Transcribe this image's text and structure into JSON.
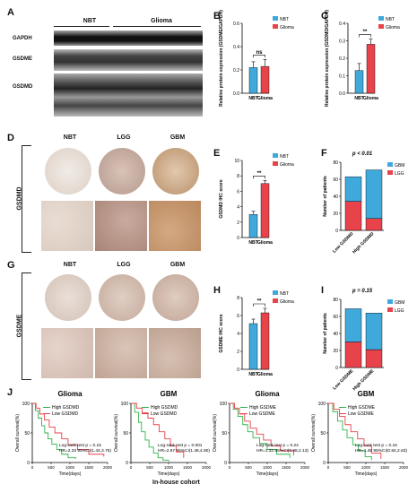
{
  "panels": {
    "A": "A",
    "B": "B",
    "C": "C",
    "D": "D",
    "E": "E",
    "F": "F",
    "G": "G",
    "H": "H",
    "I": "I",
    "J": "J"
  },
  "western": {
    "groups": [
      "NBT",
      "Glioma"
    ],
    "rows": [
      "GAPDH",
      "GSDME",
      "GSDMD"
    ]
  },
  "ihc_d": {
    "cols": [
      "NBT",
      "LGG",
      "GBM"
    ],
    "side": "GSDMD"
  },
  "ihc_g": {
    "cols": [
      "NBT",
      "LGG",
      "GBM"
    ],
    "side": "GSDME"
  },
  "footer": "In-house cohort",
  "colors": {
    "nbt": "#3fa9dc",
    "glioma": "#e8424a",
    "gbm": "#3fa9dc",
    "lgg": "#e8424a",
    "high": "#2fb34a",
    "low": "#e8424a"
  },
  "chart_data": [
    {
      "id": "B",
      "type": "bar",
      "ylabel": "Relative protein expression (GSDME/GAPDH)",
      "categories": [
        "NBT",
        "Glioma"
      ],
      "values": [
        0.22,
        0.23
      ],
      "err": [
        0.05,
        0.06
      ],
      "ylim": [
        0,
        0.6
      ],
      "yticks": [
        "0.0",
        "0.2",
        "0.4",
        "0.6"
      ],
      "legend": [
        "NBT",
        "Glioma"
      ],
      "sig": "ns"
    },
    {
      "id": "C",
      "type": "bar",
      "ylabel": "Relative protein expression (GSDMD/GAPDH)",
      "categories": [
        "NBT",
        "Glioma"
      ],
      "values": [
        0.13,
        0.28
      ],
      "err": [
        0.04,
        0.03
      ],
      "ylim": [
        0,
        0.4
      ],
      "yticks": [
        "0.0",
        "0.1",
        "0.2",
        "0.3",
        "0.4"
      ],
      "legend": [
        "NBT",
        "Glioma"
      ],
      "sig": "**"
    },
    {
      "id": "E",
      "type": "bar",
      "ylabel": "GSDMD IHC score",
      "categories": [
        "NBT",
        "Glioma"
      ],
      "values": [
        3.0,
        7.0
      ],
      "err": [
        0.4,
        0.4
      ],
      "ylim": [
        0,
        10
      ],
      "yticks": [
        "0",
        "2",
        "4",
        "6",
        "8",
        "10"
      ],
      "legend": [
        "NBT",
        "Glioma"
      ],
      "sig": "**"
    },
    {
      "id": "F",
      "type": "stacked-bar",
      "ylabel": "Number of patients",
      "title": "p < 0.01",
      "categories": [
        "Low GSDMD",
        "High GSDMD"
      ],
      "series": [
        {
          "name": "LGG",
          "values": [
            34,
            14
          ]
        },
        {
          "name": "GBM",
          "values": [
            29,
            57
          ]
        }
      ],
      "ylim": [
        0,
        80
      ],
      "yticks": [
        "0",
        "20",
        "40",
        "60",
        "80"
      ],
      "legend": [
        "GBM",
        "LGG"
      ]
    },
    {
      "id": "H",
      "type": "bar",
      "ylabel": "GSDME IHC score",
      "categories": [
        "NBT",
        "Glioma"
      ],
      "values": [
        5.1,
        6.3
      ],
      "err": [
        0.5,
        0.5
      ],
      "ylim": [
        0,
        8
      ],
      "yticks": [
        "0",
        "2",
        "4",
        "6",
        "8"
      ],
      "legend": [
        "NBT",
        "Glioma"
      ],
      "sig": "**"
    },
    {
      "id": "I",
      "type": "stacked-bar",
      "ylabel": "Number of patients",
      "title": "p = 0.15",
      "categories": [
        "Low GSDME",
        "High GSDME"
      ],
      "series": [
        {
          "name": "LGG",
          "values": [
            30,
            21
          ]
        },
        {
          "name": "GBM",
          "values": [
            39,
            43
          ]
        }
      ],
      "ylim": [
        0,
        80
      ],
      "yticks": [
        "0",
        "20",
        "40",
        "60",
        "80"
      ],
      "legend": [
        "GBM",
        "LGG"
      ]
    },
    {
      "id": "J1",
      "type": "line",
      "title": "Glioma",
      "ylabel": "Overall survival(%)",
      "xlabel": "Time(days)",
      "legend": [
        "High GSDMD",
        "Low GSDMD"
      ],
      "logrank": "Log-rank test  p = 0.15",
      "hr": "HR=2.33  95%CI(1.44,3.75)",
      "xticks": [
        "0",
        "500",
        "1000",
        "1500",
        "2000"
      ],
      "yticks": [
        "0",
        "50",
        "100"
      ],
      "series": [
        {
          "name": "High GSDMD",
          "x": [
            0,
            80,
            160,
            250,
            330,
            420,
            520,
            650,
            780,
            950,
            1150
          ],
          "y": [
            100,
            88,
            75,
            62,
            50,
            40,
            31,
            22,
            14,
            8,
            6
          ]
        },
        {
          "name": "Low GSDMD",
          "x": [
            0,
            100,
            200,
            320,
            450,
            600,
            780,
            950,
            1200,
            1500,
            1900
          ],
          "y": [
            100,
            92,
            82,
            72,
            60,
            50,
            40,
            30,
            22,
            14,
            10
          ]
        }
      ]
    },
    {
      "id": "J2",
      "type": "line",
      "title": "GBM",
      "ylabel": "Overall survival(%)",
      "xlabel": "Time(days)",
      "legend": [
        "High GSDMD",
        "Low GSDMD"
      ],
      "logrank": "Log-rank test  p = 0.001",
      "hr": "HR=2.67  95%CI(1.48,4.80)",
      "xticks": [
        "0",
        "500",
        "1000",
        "1500",
        "2000"
      ],
      "yticks": [
        "0",
        "50",
        "100"
      ],
      "series": [
        {
          "name": "High GSDMD",
          "x": [
            0,
            100,
            200,
            280,
            380,
            480,
            600,
            720,
            850,
            1000
          ],
          "y": [
            100,
            85,
            68,
            52,
            38,
            26,
            16,
            8,
            4,
            2
          ]
        },
        {
          "name": "Low GSDMD",
          "x": [
            0,
            150,
            300,
            450,
            600,
            750,
            900,
            1050,
            1200,
            1400
          ],
          "y": [
            100,
            92,
            84,
            75,
            64,
            52,
            40,
            28,
            18,
            8
          ]
        }
      ]
    },
    {
      "id": "J3",
      "type": "line",
      "title": "Glioma",
      "ylabel": "Overall survival(%)",
      "xlabel": "Time(days)",
      "legend": [
        "High GSDME",
        "Low GSDME"
      ],
      "logrank": "Log-rank test  p = 0.24",
      "hr": "HR=1.32  95%CI(0.88,2.13)",
      "xticks": [
        "0",
        "500",
        "1000",
        "1500",
        "2000"
      ],
      "yticks": [
        "0",
        "50",
        "100"
      ],
      "series": [
        {
          "name": "High GSDME",
          "x": [
            0,
            100,
            220,
            350,
            480,
            620,
            800,
            1000,
            1250,
            1600
          ],
          "y": [
            100,
            90,
            78,
            64,
            52,
            42,
            32,
            22,
            14,
            8
          ]
        },
        {
          "name": "Low GSDME",
          "x": [
            0,
            130,
            260,
            400,
            550,
            720,
            900,
            1100,
            1350,
            1700
          ],
          "y": [
            100,
            92,
            82,
            70,
            58,
            48,
            38,
            28,
            20,
            12
          ]
        }
      ]
    },
    {
      "id": "J4",
      "type": "line",
      "title": "GBM",
      "ylabel": "Overall survival(%)",
      "xlabel": "Time(days)",
      "legend": [
        "High GSDME",
        "Low GSDME"
      ],
      "logrank": "Log-rank test  p = 0.16",
      "hr": "HR=1.48  95%CI(0.84,2.63)",
      "xticks": [
        "0",
        "500",
        "1000",
        "1500",
        "2000"
      ],
      "yticks": [
        "0",
        "50",
        "100"
      ],
      "series": [
        {
          "name": "High GSDME",
          "x": [
            0,
            120,
            250,
            380,
            500,
            650,
            800,
            980,
            1150
          ],
          "y": [
            100,
            86,
            70,
            55,
            42,
            30,
            20,
            10,
            4
          ]
        },
        {
          "name": "Low GSDME",
          "x": [
            0,
            150,
            300,
            450,
            600,
            780,
            950,
            1150,
            1400
          ],
          "y": [
            100,
            90,
            78,
            64,
            52,
            40,
            28,
            16,
            6
          ]
        }
      ]
    }
  ]
}
